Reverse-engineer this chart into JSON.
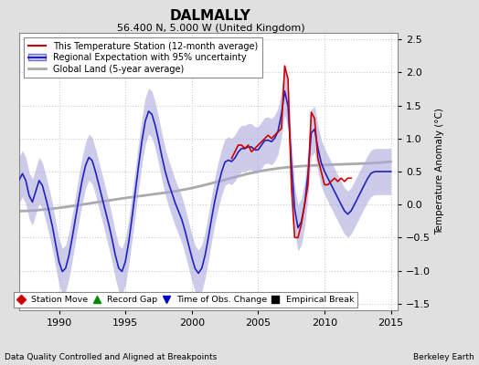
{
  "title": "DALMALLY",
  "subtitle": "56.400 N, 5.000 W (United Kingdom)",
  "ylabel": "Temperature Anomaly (°C)",
  "xlabel_left": "Data Quality Controlled and Aligned at Breakpoints",
  "xlabel_right": "Berkeley Earth",
  "xlim": [
    1987.0,
    2015.5
  ],
  "ylim": [
    -1.6,
    2.6
  ],
  "yticks": [
    -1.5,
    -1.0,
    -0.5,
    0.0,
    0.5,
    1.0,
    1.5,
    2.0,
    2.5
  ],
  "xticks": [
    1990,
    1995,
    2000,
    2005,
    2010,
    2015
  ],
  "fig_bg_color": "#e0e0e0",
  "plot_bg_color": "#ffffff",
  "grid_color": "#cccccc",
  "legend_items": [
    {
      "label": "This Temperature Station (12-month average)",
      "color": "#cc0000",
      "lw": 1.2
    },
    {
      "label": "Regional Expectation with 95% uncertainty",
      "color": "#2222bb",
      "lw": 1.2
    },
    {
      "label": "Global Land (5-year average)",
      "color": "#aaaaaa",
      "lw": 2.0
    }
  ],
  "uncertainty_color": "#aaaadd",
  "uncertainty_alpha": 0.6,
  "marker_legend": [
    {
      "label": "Station Move",
      "color": "#cc0000",
      "marker": "D"
    },
    {
      "label": "Record Gap",
      "color": "#008800",
      "marker": "^"
    },
    {
      "label": "Time of Obs. Change",
      "color": "#0000cc",
      "marker": "v"
    },
    {
      "label": "Empirical Break",
      "color": "#000000",
      "marker": "s"
    }
  ],
  "regional_years": [
    1987.0,
    1987.25,
    1987.5,
    1987.75,
    1988.0,
    1988.25,
    1988.5,
    1988.75,
    1989.0,
    1989.25,
    1989.5,
    1989.75,
    1990.0,
    1990.25,
    1990.5,
    1990.75,
    1991.0,
    1991.25,
    1991.5,
    1991.75,
    1992.0,
    1992.25,
    1992.5,
    1992.75,
    1993.0,
    1993.25,
    1993.5,
    1993.75,
    1994.0,
    1994.25,
    1994.5,
    1994.75,
    1995.0,
    1995.25,
    1995.5,
    1995.75,
    1996.0,
    1996.25,
    1996.5,
    1996.75,
    1997.0,
    1997.25,
    1997.5,
    1997.75,
    1998.0,
    1998.25,
    1998.5,
    1998.75,
    1999.0,
    1999.25,
    1999.5,
    1999.75,
    2000.0,
    2000.25,
    2000.5,
    2000.75,
    2001.0,
    2001.25,
    2001.5,
    2001.75,
    2002.0,
    2002.25,
    2002.5,
    2002.75,
    2003.0,
    2003.25,
    2003.5,
    2003.75,
    2004.0,
    2004.25,
    2004.5,
    2004.75,
    2005.0,
    2005.25,
    2005.5,
    2005.75,
    2006.0,
    2006.25,
    2006.5,
    2006.75,
    2007.0,
    2007.25,
    2007.5,
    2007.75,
    2008.0,
    2008.25,
    2008.5,
    2008.75,
    2009.0,
    2009.25,
    2009.5,
    2009.75,
    2010.0,
    2010.25,
    2010.5,
    2010.75,
    2011.0,
    2011.25,
    2011.5,
    2011.75,
    2012.0,
    2012.25,
    2012.5,
    2012.75,
    2013.0,
    2013.25,
    2013.5,
    2013.75,
    2014.0,
    2014.25,
    2014.5,
    2014.75,
    2015.0
  ],
  "regional_vals": [
    0.3,
    0.6,
    0.4,
    0.1,
    -0.1,
    0.2,
    0.5,
    0.3,
    0.1,
    -0.1,
    -0.3,
    -0.6,
    -0.9,
    -1.1,
    -1.0,
    -0.8,
    -0.5,
    -0.2,
    0.1,
    0.4,
    0.6,
    0.8,
    0.7,
    0.5,
    0.3,
    0.1,
    -0.1,
    -0.3,
    -0.5,
    -0.8,
    -1.0,
    -1.1,
    -0.9,
    -0.6,
    -0.2,
    0.2,
    0.6,
    1.0,
    1.3,
    1.5,
    1.4,
    1.2,
    1.0,
    0.7,
    0.5,
    0.3,
    0.2,
    0.0,
    -0.1,
    -0.2,
    -0.4,
    -0.6,
    -0.8,
    -1.0,
    -1.1,
    -1.0,
    -0.8,
    -0.5,
    -0.2,
    0.1,
    0.3,
    0.5,
    0.7,
    0.7,
    0.6,
    0.7,
    0.8,
    0.9,
    0.8,
    0.9,
    0.9,
    0.8,
    0.8,
    0.9,
    1.0,
    1.0,
    0.9,
    1.0,
    1.1,
    1.2,
    2.0,
    1.8,
    0.5,
    -0.2,
    -0.5,
    -0.3,
    0.0,
    0.2,
    1.5,
    1.2,
    0.8,
    0.6,
    0.5,
    0.4,
    0.3,
    0.2,
    0.1,
    0.0,
    -0.1,
    -0.2,
    -0.1,
    0.0,
    0.1,
    0.2,
    0.3,
    0.4,
    0.5,
    0.5,
    0.5,
    0.5,
    0.5,
    0.5,
    0.5
  ],
  "global_years": [
    1987,
    1990,
    1995,
    2000,
    2005,
    2010,
    2015
  ],
  "global_vals": [
    -0.1,
    -0.05,
    0.1,
    0.25,
    0.5,
    0.6,
    0.65
  ],
  "station_years": [
    2003.0,
    2003.25,
    2003.5,
    2003.75,
    2004.0,
    2004.25,
    2004.5,
    2004.75,
    2005.0,
    2005.25,
    2005.5,
    2005.75,
    2006.0,
    2006.25,
    2006.5,
    2006.75,
    2007.0,
    2007.25,
    2007.5,
    2007.75,
    2008.0,
    2008.25,
    2008.5,
    2008.75,
    2009.0,
    2009.25,
    2009.5,
    2009.75,
    2010.0,
    2010.25,
    2010.5,
    2010.75,
    2011.0,
    2011.25,
    2011.5,
    2011.75,
    2012.0
  ],
  "station_vals": [
    0.7,
    0.8,
    0.9,
    0.9,
    0.85,
    0.9,
    0.8,
    0.85,
    0.9,
    0.95,
    1.0,
    1.05,
    1.0,
    1.05,
    1.1,
    1.15,
    2.1,
    1.9,
    0.3,
    -0.5,
    -0.5,
    -0.3,
    0.0,
    0.3,
    1.4,
    1.3,
    0.7,
    0.5,
    0.3,
    0.3,
    0.35,
    0.4,
    0.35,
    0.4,
    0.35,
    0.4,
    0.4
  ],
  "uncertainty_vals": [
    0.35,
    0.35,
    0.35,
    0.35,
    0.35,
    0.35,
    0.35,
    0.35,
    0.35,
    0.35,
    0.35,
    0.35,
    0.35,
    0.35,
    0.35,
    0.35,
    0.35,
    0.35,
    0.35,
    0.35,
    0.35,
    0.35,
    0.35,
    0.35,
    0.35,
    0.35,
    0.35,
    0.35,
    0.35,
    0.35,
    0.35,
    0.35,
    0.35,
    0.35,
    0.35,
    0.35,
    0.35,
    0.35,
    0.35,
    0.35,
    0.35,
    0.35,
    0.35,
    0.35,
    0.35,
    0.35,
    0.35,
    0.35,
    0.35,
    0.35,
    0.35,
    0.35,
    0.35,
    0.35,
    0.35,
    0.35,
    0.35,
    0.35,
    0.35,
    0.35,
    0.35,
    0.35,
    0.35,
    0.35,
    0.35,
    0.35,
    0.35,
    0.35,
    0.35,
    0.35,
    0.35,
    0.35,
    0.35,
    0.35,
    0.35,
    0.35,
    0.35,
    0.35,
    0.35,
    0.35,
    0.35,
    0.35,
    0.35,
    0.35,
    0.35,
    0.35,
    0.35,
    0.35,
    0.35,
    0.35,
    0.35,
    0.35,
    0.35,
    0.35,
    0.35,
    0.35,
    0.35,
    0.35,
    0.35,
    0.35,
    0.35,
    0.35,
    0.35,
    0.35,
    0.35,
    0.35,
    0.35,
    0.35,
    0.35,
    0.35,
    0.35,
    0.35,
    0.35
  ]
}
